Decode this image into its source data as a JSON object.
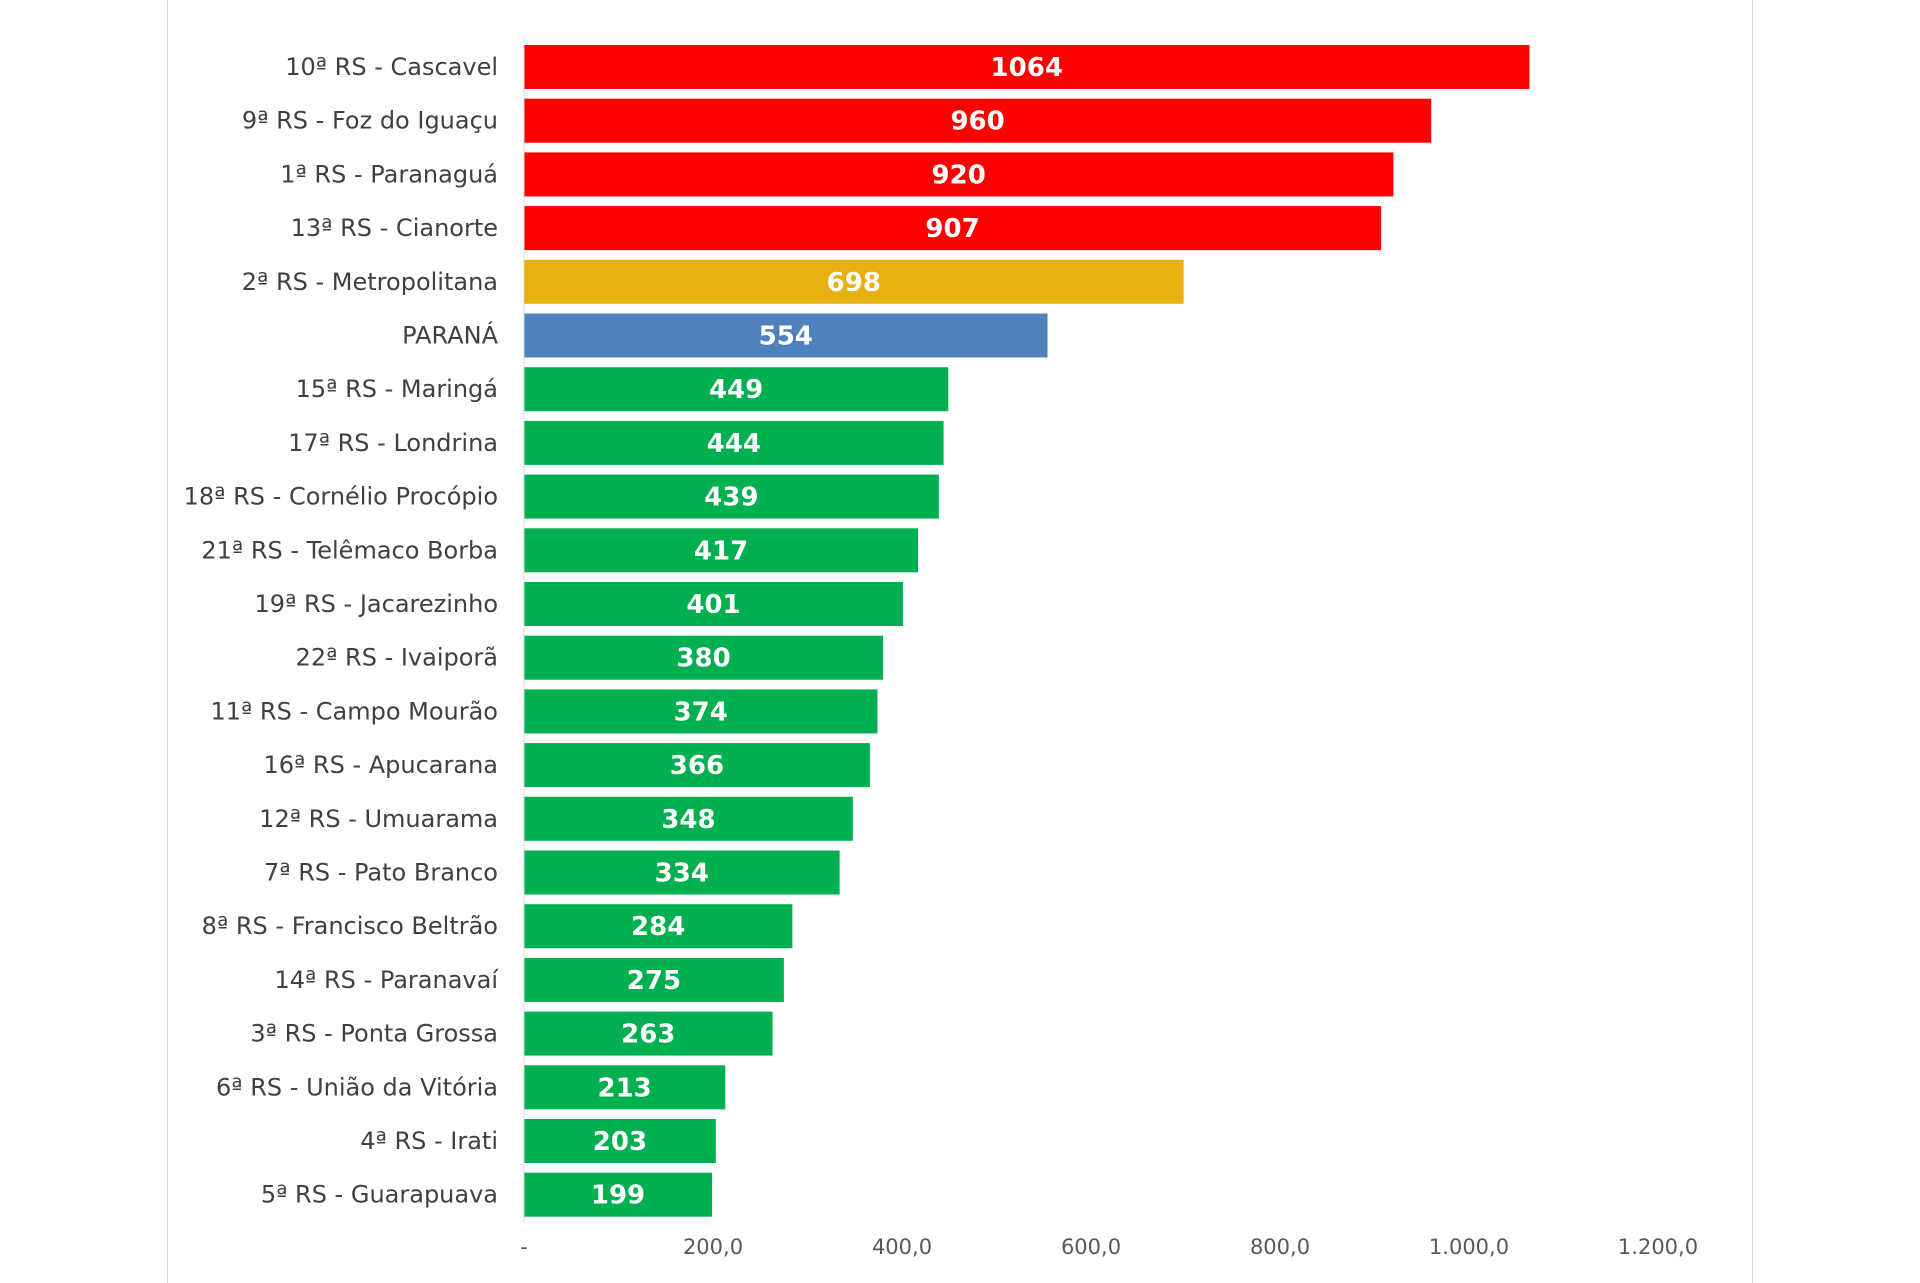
{
  "chart_data": {
    "type": "bar",
    "orientation": "horizontal",
    "title": "",
    "xlabel": "",
    "ylabel": "",
    "xlim": [
      0,
      1200
    ],
    "grid": false,
    "legend": "none",
    "x_ticks": [
      {
        "value": 0,
        "label": "-"
      },
      {
        "value": 200,
        "label": "200,0"
      },
      {
        "value": 400,
        "label": "400,0"
      },
      {
        "value": 600,
        "label": "600,0"
      },
      {
        "value": 800,
        "label": "800,0"
      },
      {
        "value": 1000,
        "label": "1.000,0"
      },
      {
        "value": 1200,
        "label": "1.200,0"
      }
    ],
    "categories": [
      "10ª RS - Cascavel",
      "9ª RS - Foz do Iguaçu",
      "1ª RS - Paranaguá",
      "13ª RS - Cianorte",
      "2ª RS - Metropolitana",
      "PARANÁ",
      "15ª RS - Maringá",
      "17ª RS - Londrina",
      "18ª RS - Cornélio Procópio",
      "21ª RS - Telêmaco Borba",
      "19ª RS - Jacarezinho",
      "22ª RS - Ivaiporã",
      "11ª RS - Campo Mourão",
      "16ª RS - Apucarana",
      "12ª RS - Umuarama",
      "7ª RS - Pato Branco",
      "8ª RS - Francisco Beltrão",
      "14ª RS - Paranavaí",
      "3ª RS - Ponta Grossa",
      "6ª RS - União da Vitória",
      "4ª RS - Irati",
      "5ª RS - Guarapuava"
    ],
    "values": [
      1064,
      960,
      920,
      907,
      698,
      554,
      449,
      444,
      439,
      417,
      401,
      380,
      374,
      366,
      348,
      334,
      284,
      275,
      263,
      213,
      203,
      199
    ],
    "value_labels": [
      "1064",
      "960",
      "920",
      "907",
      "698",
      "554",
      "449",
      "444",
      "439",
      "417",
      "401",
      "380",
      "374",
      "366",
      "348",
      "334",
      "284",
      "275",
      "263",
      "213",
      "203",
      "199"
    ],
    "bar_colors": [
      "#ff0000",
      "#ff0000",
      "#ff0000",
      "#ff0000",
      "#e6b00e",
      "#4f81bd",
      "#00b050",
      "#00b050",
      "#00b050",
      "#00b050",
      "#00b050",
      "#00b050",
      "#00b050",
      "#00b050",
      "#00b050",
      "#00b050",
      "#00b050",
      "#00b050",
      "#00b050",
      "#00b050",
      "#00b050",
      "#00b050"
    ]
  }
}
